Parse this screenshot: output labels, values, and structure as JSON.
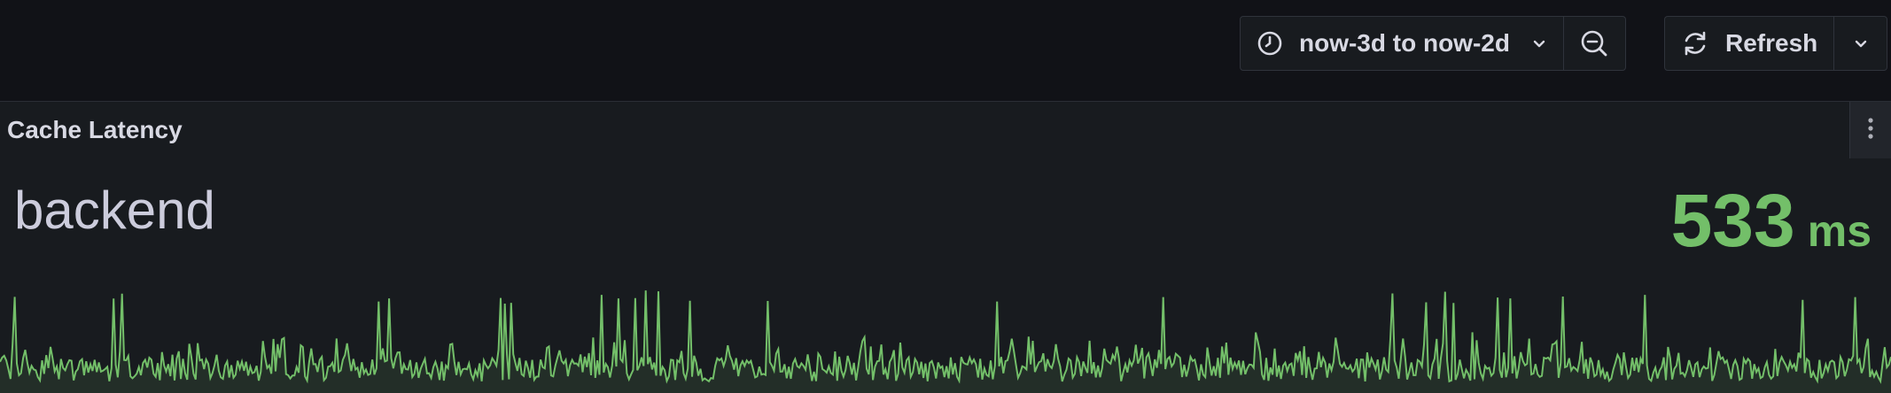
{
  "toolbar": {
    "time_range_label": "now-3d to now-2d",
    "time_icon": "clock-icon",
    "zoom_icon": "zoom-out-icon",
    "refresh_label": "Refresh",
    "refresh_icon": "refresh-icon",
    "caret_icon": "chevron-down-icon"
  },
  "panel": {
    "title": "Cache Latency",
    "menu_icon": "vertical-dots-icon",
    "series_name": "backend",
    "value": "533",
    "unit": "ms"
  },
  "colors": {
    "background": "#111217",
    "panel": "#181b1f",
    "accent_green": "#73bf69",
    "text": "#ccccdc"
  },
  "sparkline": {
    "seed": 533
  }
}
